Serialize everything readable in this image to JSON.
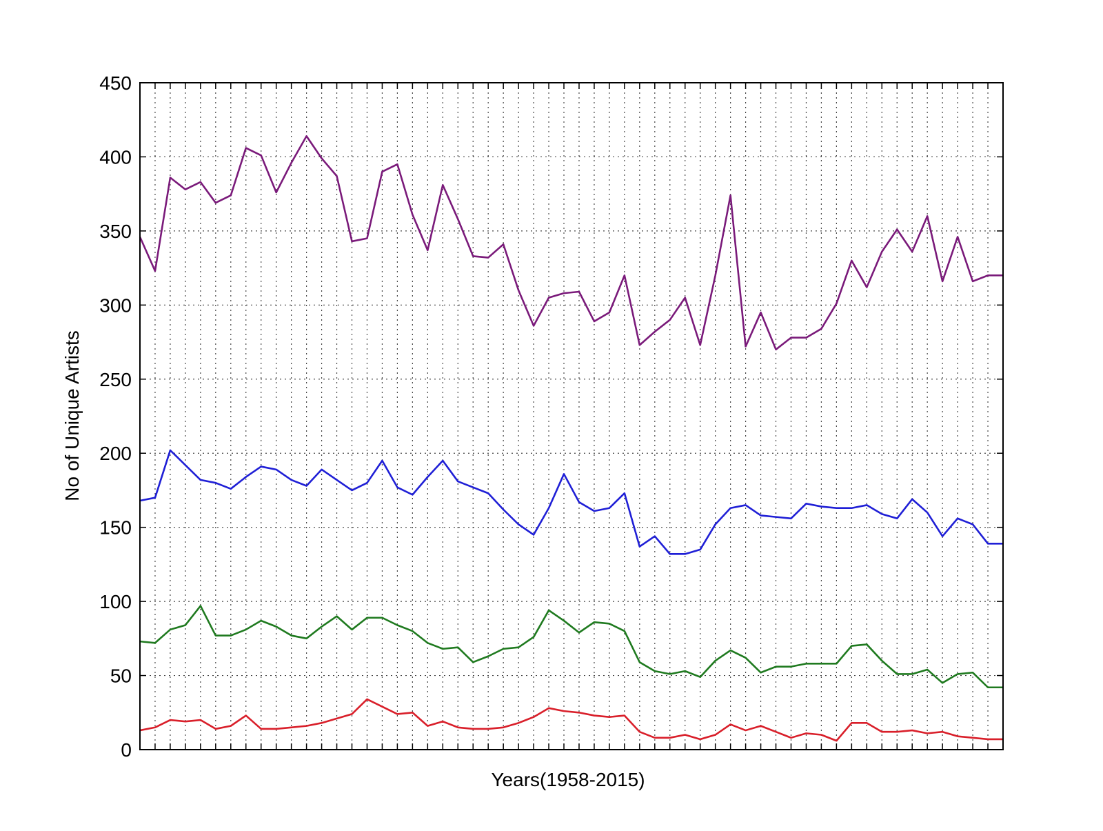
{
  "chart_data": {
    "type": "line",
    "title": "",
    "xlabel": "Years(1958-2015)",
    "ylabel": "No of Unique Artists",
    "x": [
      1958,
      1959,
      1960,
      1961,
      1962,
      1963,
      1964,
      1965,
      1966,
      1967,
      1968,
      1969,
      1970,
      1971,
      1972,
      1973,
      1974,
      1975,
      1976,
      1977,
      1978,
      1979,
      1980,
      1981,
      1982,
      1983,
      1984,
      1985,
      1986,
      1987,
      1988,
      1989,
      1990,
      1991,
      1992,
      1993,
      1994,
      1995,
      1996,
      1997,
      1998,
      1999,
      2000,
      2001,
      2002,
      2003,
      2004,
      2005,
      2006,
      2007,
      2008,
      2009,
      2010,
      2011,
      2012,
      2013,
      2014,
      2015
    ],
    "xlim": [
      1958,
      2015
    ],
    "ylim": [
      0,
      450
    ],
    "yticks": [
      0,
      50,
      100,
      150,
      200,
      250,
      300,
      350,
      400,
      450
    ],
    "grid": true,
    "legend": "none",
    "series": [
      {
        "color": "#7a1a7a",
        "values": [
          346,
          323,
          386,
          378,
          383,
          369,
          374,
          406,
          401,
          376,
          396,
          414,
          399,
          387,
          343,
          345,
          390,
          395,
          361,
          337,
          381,
          358,
          333,
          332,
          341,
          310,
          286,
          305,
          308,
          309,
          289,
          295,
          320,
          273,
          282,
          290,
          305,
          273,
          320,
          374,
          272,
          295,
          270,
          278,
          278,
          284,
          301,
          330,
          312,
          336,
          351,
          336,
          360,
          316,
          346,
          316,
          320,
          320
        ]
      },
      {
        "color": "#1f1fd6",
        "values": [
          168,
          170,
          202,
          192,
          182,
          180,
          176,
          184,
          191,
          189,
          182,
          178,
          189,
          182,
          175,
          180,
          195,
          177,
          172,
          184,
          195,
          181,
          177,
          173,
          162,
          152,
          145,
          163,
          186,
          167,
          161,
          163,
          173,
          137,
          144,
          132,
          132,
          135,
          152,
          163,
          165,
          158,
          157,
          156,
          166,
          164,
          163,
          163,
          165,
          159,
          156,
          169,
          160,
          144,
          156,
          152,
          139,
          139
        ]
      },
      {
        "color": "#1f7a1f",
        "values": [
          73,
          72,
          81,
          84,
          97,
          77,
          77,
          81,
          87,
          83,
          77,
          75,
          83,
          90,
          81,
          89,
          89,
          84,
          80,
          72,
          68,
          69,
          59,
          63,
          68,
          69,
          76,
          94,
          87,
          79,
          86,
          85,
          80,
          59,
          53,
          51,
          53,
          49,
          60,
          67,
          62,
          52,
          56,
          56,
          58,
          58,
          58,
          70,
          71,
          60,
          51,
          51,
          54,
          45,
          51,
          52,
          42,
          42
        ]
      },
      {
        "color": "#d91f2a",
        "values": [
          13,
          15,
          20,
          19,
          20,
          14,
          16,
          23,
          14,
          14,
          15,
          16,
          18,
          21,
          24,
          34,
          29,
          24,
          25,
          16,
          19,
          15,
          14,
          14,
          15,
          18,
          22,
          28,
          26,
          25,
          23,
          22,
          23,
          12,
          8,
          8,
          10,
          7,
          10,
          17,
          13,
          16,
          12,
          8,
          11,
          10,
          6,
          18,
          18,
          12,
          12,
          13,
          11,
          12,
          9,
          8,
          7,
          7
        ]
      }
    ]
  }
}
